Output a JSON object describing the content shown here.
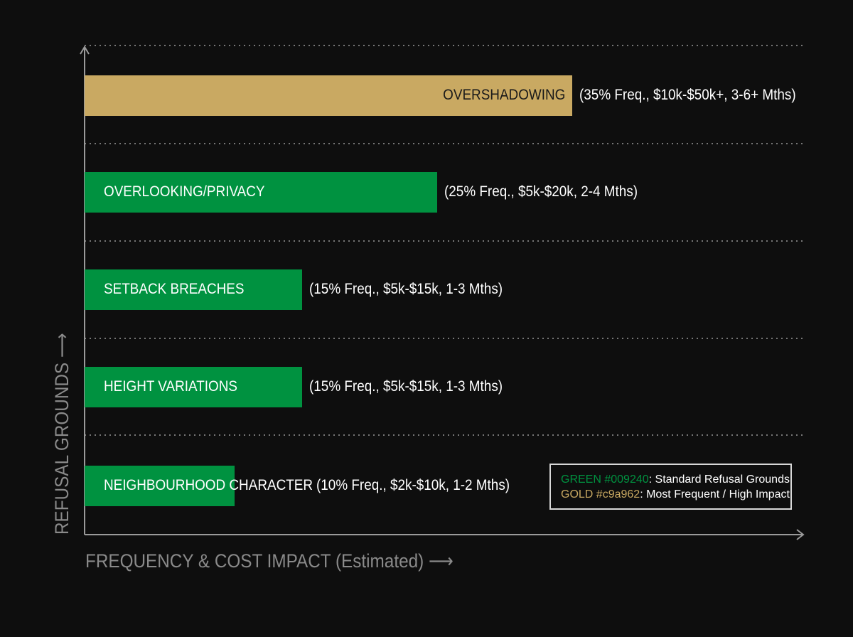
{
  "chart_data": {
    "type": "bar",
    "orientation": "horizontal",
    "xlabel": "FREQUENCY & COST IMPACT (Estimated) ⟶",
    "ylabel": "REFUSAL GROUNDS ⟶",
    "grid": true,
    "legend_position": "bottom-right",
    "categories": [
      "OVERSHADOWING",
      "OVERLOOKING/PRIVACY",
      "SETBACK BREACHES",
      "HEIGHT VARIATIONS",
      "NEIGHBOURHOOD CHARACTER"
    ],
    "values": [
      35,
      25,
      15,
      15,
      10
    ],
    "value_unit": "% frequency",
    "annotations": [
      "(35% Freq., $10k-$50k+, 3-6+ Mths)",
      "(25% Freq., $5k-$20k, 2-4 Mths)",
      "(15% Freq., $5k-$15k, 1-3 Mths)",
      "(15% Freq., $5k-$15k, 1-3 Mths)",
      "(10% Freq., $2k-$10k, 1-2 Mths)"
    ],
    "bar_colors": [
      "#c9a962",
      "#009240",
      "#009240",
      "#009240",
      "#009240"
    ],
    "legend": [
      {
        "key": "GREEN #009240",
        "text": ": Standard Refusal Grounds",
        "color": "#009240"
      },
      {
        "key": "GOLD #c9a962",
        "text": ": Most Frequent / High Impact",
        "color": "#c9a962"
      }
    ]
  }
}
